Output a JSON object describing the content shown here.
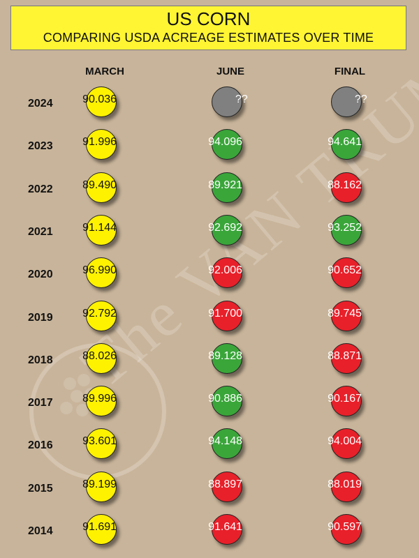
{
  "header": {
    "title": "US CORN",
    "subtitle": "COMPARING USDA ACREAGE ESTIMATES OVER TIME"
  },
  "watermark": {
    "text": "The VAN TRUMP Report"
  },
  "colors": {
    "background": "#c8b49a",
    "banner": "#fff533",
    "march": "#fff200",
    "increase": "#3aa63a",
    "decrease": "#e8202a",
    "unknown": "#808080"
  },
  "chart_data": {
    "type": "table",
    "title": "US CORN",
    "subtitle": "COMPARING USDA ACREAGE ESTIMATES OVER TIME",
    "columns": [
      "MARCH",
      "JUNE",
      "FINAL"
    ],
    "rows": [
      {
        "year": "2024",
        "march": "90.036",
        "june": "??",
        "final": "??",
        "june_status": "unknown",
        "final_status": "unknown"
      },
      {
        "year": "2023",
        "march": "91.996",
        "june": "94.096",
        "final": "94.641",
        "june_status": "higher",
        "final_status": "higher"
      },
      {
        "year": "2022",
        "march": "89.490",
        "june": "89.921",
        "final": "88.162",
        "june_status": "higher",
        "final_status": "lower"
      },
      {
        "year": "2021",
        "march": "91.144",
        "june": "92.692",
        "final": "93.252",
        "june_status": "higher",
        "final_status": "higher"
      },
      {
        "year": "2020",
        "march": "96.990",
        "june": "92.006",
        "final": "90.652",
        "june_status": "lower",
        "final_status": "lower"
      },
      {
        "year": "2019",
        "march": "92.792",
        "june": "91.700",
        "final": "89.745",
        "june_status": "lower",
        "final_status": "lower"
      },
      {
        "year": "2018",
        "march": "88.026",
        "june": "89.128",
        "final": "88.871",
        "june_status": "higher",
        "final_status": "lower"
      },
      {
        "year": "2017",
        "march": "89.996",
        "june": "90.886",
        "final": "90.167",
        "june_status": "higher",
        "final_status": "lower"
      },
      {
        "year": "2016",
        "march": "93.601",
        "june": "94.148",
        "final": "94.004",
        "june_status": "higher",
        "final_status": "lower"
      },
      {
        "year": "2015",
        "march": "89.199",
        "june": "88.897",
        "final": "88.019",
        "june_status": "lower",
        "final_status": "lower"
      },
      {
        "year": "2014",
        "march": "91.691",
        "june": "91.641",
        "final": "90.597",
        "june_status": "lower",
        "final_status": "lower"
      }
    ]
  }
}
